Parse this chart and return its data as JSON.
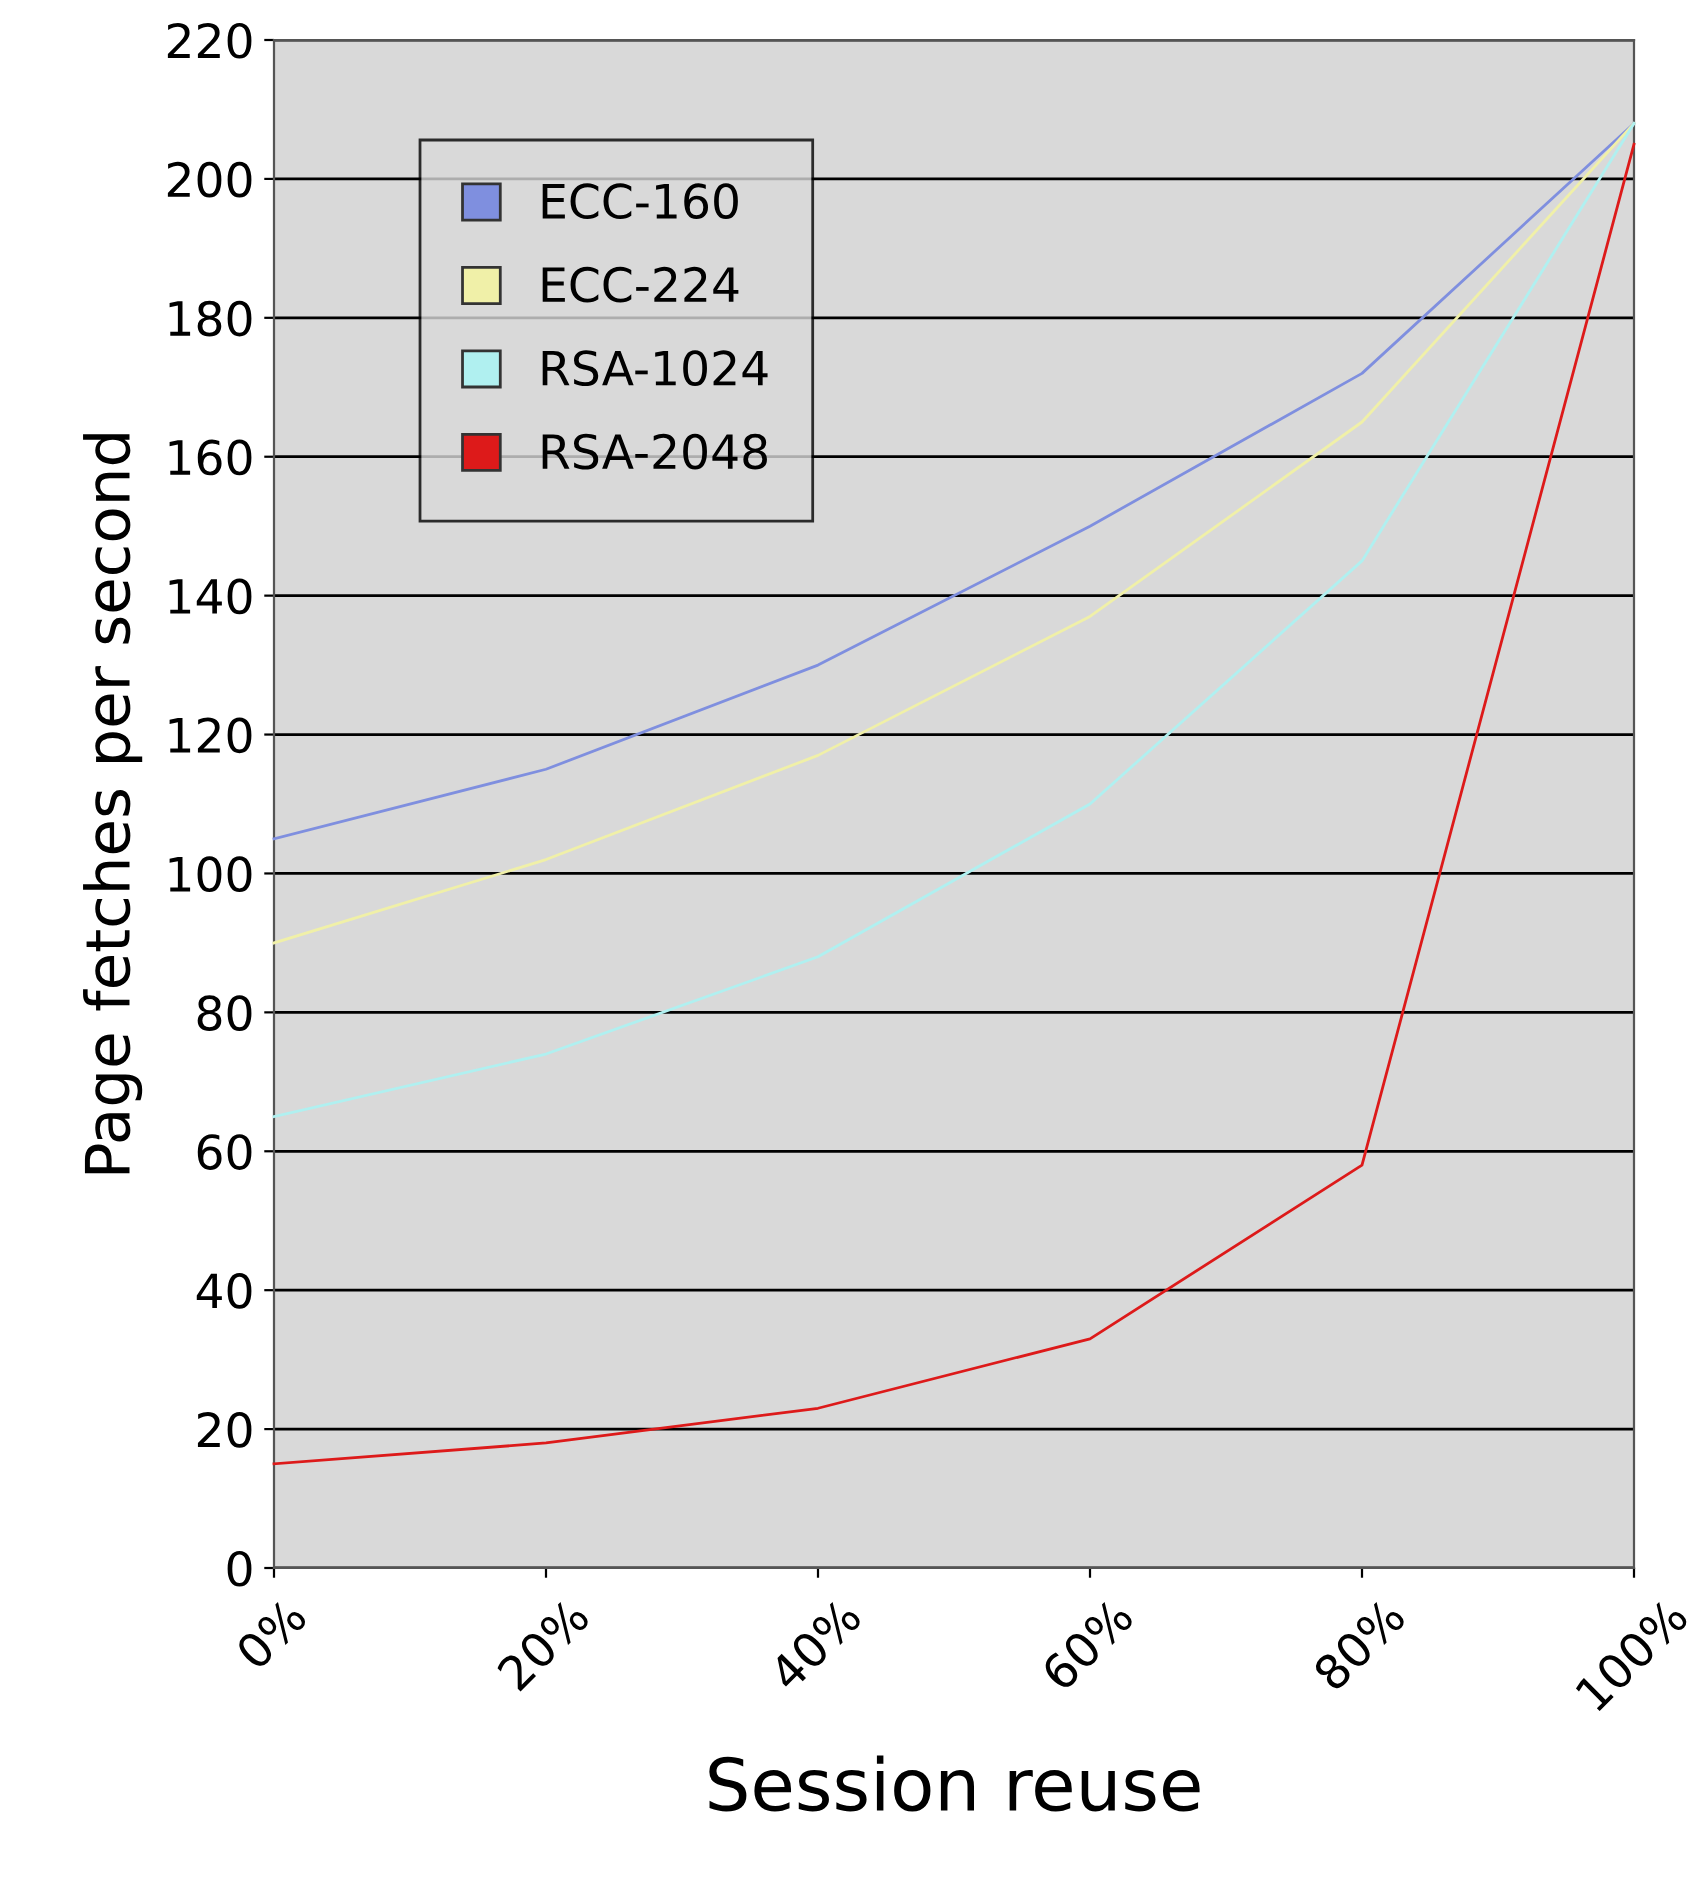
{
  "chart_data": {
    "type": "line",
    "xlabel": "Session reuse",
    "ylabel": "Page fetches per second",
    "categories": [
      "0%",
      "20%",
      "40%",
      "60%",
      "80%",
      "100%"
    ],
    "series": [
      {
        "name": "ECC-160",
        "color": "#7f8fdf",
        "values": [
          105,
          115,
          130,
          150,
          172,
          208
        ]
      },
      {
        "name": "ECC-224",
        "color": "#f0f0a8",
        "values": [
          90,
          102,
          117,
          137,
          165,
          208
        ]
      },
      {
        "name": "RSA-1024",
        "color": "#b0f0f0",
        "values": [
          65,
          74,
          88,
          110,
          145,
          208
        ]
      },
      {
        "name": "RSA-2048",
        "color": "#dd1a1a",
        "values": [
          15,
          18,
          23,
          33,
          58,
          205
        ]
      }
    ],
    "ylim": [
      0,
      220
    ],
    "yticks": [
      0,
      20,
      40,
      60,
      80,
      100,
      120,
      140,
      160,
      180,
      200,
      220
    ],
    "grid": "y",
    "legend": "top left",
    "marker": "none",
    "line_style": "solid"
  }
}
